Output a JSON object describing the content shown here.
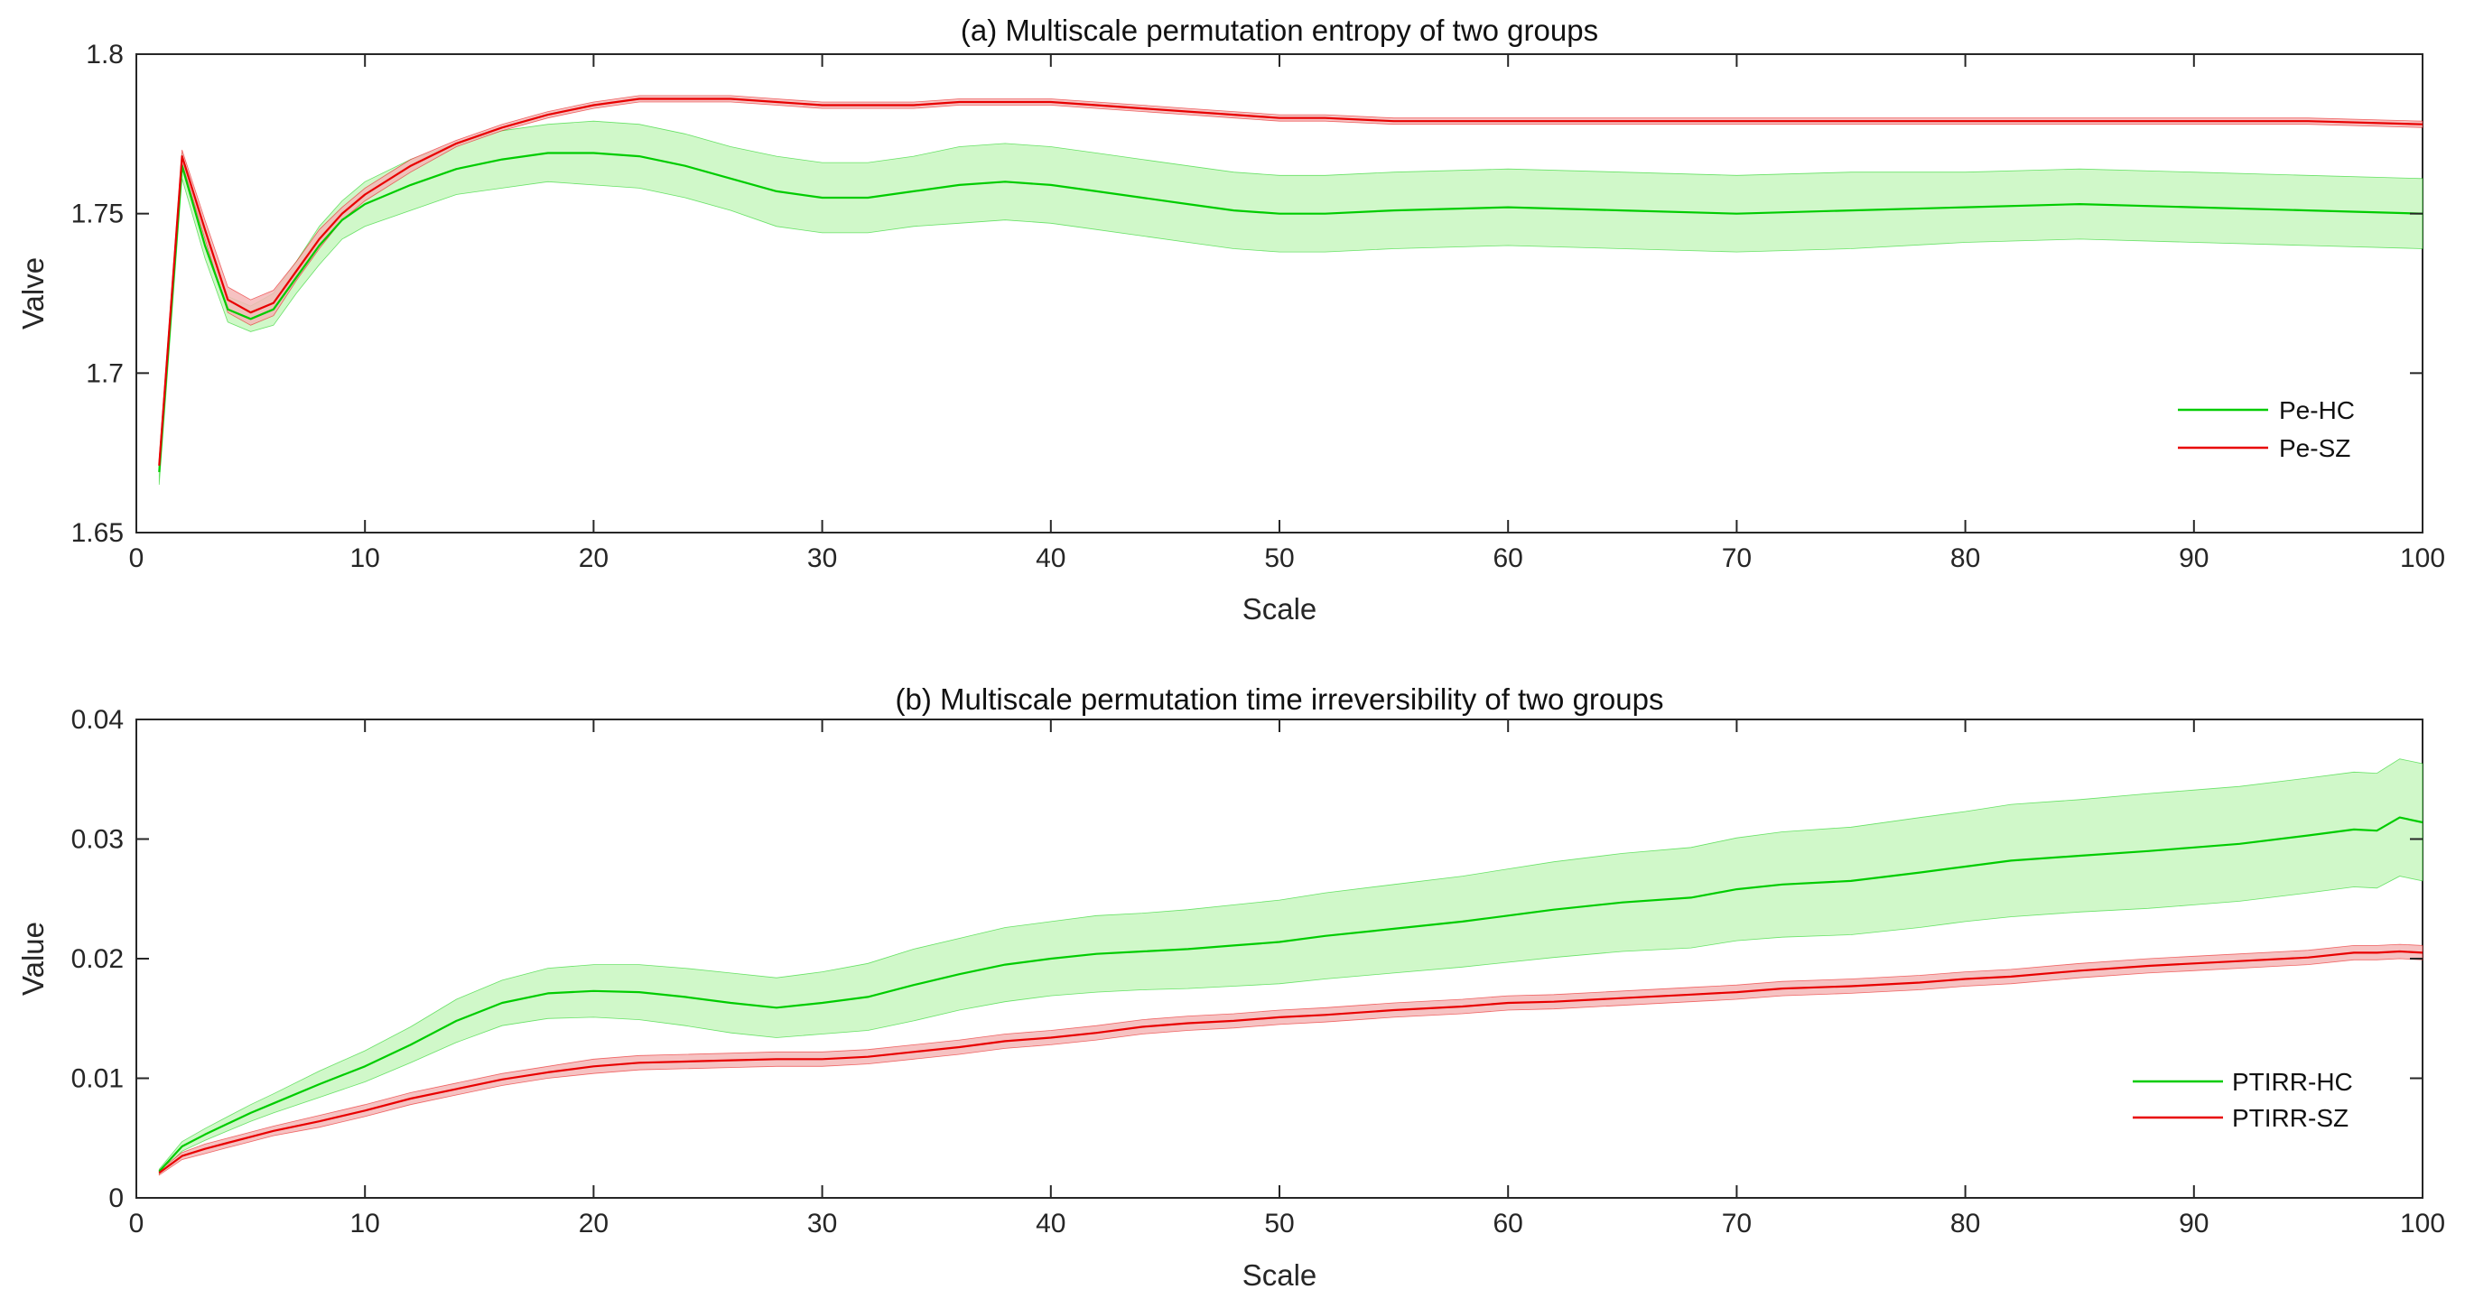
{
  "chart_data": [
    {
      "type": "line",
      "title": "(a) Multiscale permutation entropy of two groups",
      "xlabel": "Scale",
      "ylabel": "Valve",
      "xlim": [
        0,
        100
      ],
      "ylim": [
        1.65,
        1.8
      ],
      "x_ticks": [
        0,
        10,
        20,
        30,
        40,
        50,
        60,
        70,
        80,
        90,
        100
      ],
      "x_tick_labels": [
        "0",
        "10",
        "20",
        "30",
        "40",
        "50",
        "60",
        "70",
        "80",
        "90",
        "100"
      ],
      "y_ticks": [
        1.65,
        1.7,
        1.75,
        1.8
      ],
      "y_tick_labels": [
        "1.65",
        "1.7",
        "1.75",
        "1.8"
      ],
      "legend_position": "right",
      "series": [
        {
          "name": "Pe-HC",
          "color": "#00cc00",
          "band_color": "#c8f7c0",
          "x": [
            1,
            2,
            3,
            4,
            5,
            6,
            7,
            8,
            9,
            10,
            12,
            14,
            16,
            18,
            20,
            22,
            24,
            26,
            28,
            30,
            32,
            34,
            36,
            38,
            40,
            42,
            44,
            46,
            48,
            50,
            52,
            55,
            60,
            65,
            70,
            75,
            80,
            85,
            90,
            95,
            100
          ],
          "mean": [
            1.669,
            1.765,
            1.74,
            1.72,
            1.717,
            1.72,
            1.73,
            1.74,
            1.748,
            1.753,
            1.759,
            1.764,
            1.767,
            1.769,
            1.769,
            1.768,
            1.765,
            1.761,
            1.757,
            1.755,
            1.755,
            1.757,
            1.759,
            1.76,
            1.759,
            1.757,
            1.755,
            1.753,
            1.751,
            1.75,
            1.75,
            1.751,
            1.752,
            1.751,
            1.75,
            1.751,
            1.752,
            1.753,
            1.752,
            1.751,
            1.75
          ],
          "half_width": [
            0.004,
            0.004,
            0.004,
            0.004,
            0.004,
            0.005,
            0.005,
            0.006,
            0.006,
            0.007,
            0.008,
            0.008,
            0.009,
            0.009,
            0.01,
            0.01,
            0.01,
            0.01,
            0.011,
            0.011,
            0.011,
            0.011,
            0.012,
            0.012,
            0.012,
            0.012,
            0.012,
            0.012,
            0.012,
            0.012,
            0.012,
            0.012,
            0.012,
            0.012,
            0.012,
            0.012,
            0.011,
            0.011,
            0.011,
            0.011,
            0.011
          ]
        },
        {
          "name": "Pe-SZ",
          "color": "#e80000",
          "band_color": "#f4b7b7",
          "x": [
            1,
            2,
            3,
            4,
            5,
            6,
            7,
            8,
            9,
            10,
            12,
            14,
            16,
            18,
            20,
            22,
            24,
            26,
            28,
            30,
            32,
            34,
            36,
            38,
            40,
            42,
            44,
            46,
            48,
            50,
            52,
            55,
            60,
            65,
            70,
            75,
            80,
            85,
            90,
            95,
            100
          ],
          "mean": [
            1.671,
            1.768,
            1.745,
            1.723,
            1.719,
            1.722,
            1.732,
            1.742,
            1.75,
            1.756,
            1.765,
            1.772,
            1.777,
            1.781,
            1.784,
            1.786,
            1.786,
            1.786,
            1.785,
            1.784,
            1.784,
            1.784,
            1.785,
            1.785,
            1.785,
            1.784,
            1.783,
            1.782,
            1.781,
            1.78,
            1.78,
            1.779,
            1.779,
            1.779,
            1.779,
            1.779,
            1.779,
            1.779,
            1.779,
            1.779,
            1.778
          ],
          "half_width": [
            0.002,
            0.002,
            0.003,
            0.004,
            0.004,
            0.004,
            0.003,
            0.003,
            0.002,
            0.002,
            0.002,
            0.001,
            0.001,
            0.001,
            0.001,
            0.001,
            0.001,
            0.001,
            0.001,
            0.001,
            0.001,
            0.001,
            0.001,
            0.001,
            0.001,
            0.001,
            0.001,
            0.001,
            0.001,
            0.001,
            0.001,
            0.001,
            0.001,
            0.001,
            0.001,
            0.001,
            0.001,
            0.001,
            0.001,
            0.001,
            0.001
          ]
        }
      ]
    },
    {
      "type": "line",
      "title": "(b) Multiscale permutation time irreversibility of two groups",
      "xlabel": "Scale",
      "ylabel": "Value",
      "xlim": [
        0,
        100
      ],
      "ylim": [
        0,
        0.04
      ],
      "x_ticks": [
        0,
        10,
        20,
        30,
        40,
        50,
        60,
        70,
        80,
        90,
        100
      ],
      "x_tick_labels": [
        "0",
        "10",
        "20",
        "30",
        "40",
        "50",
        "60",
        "70",
        "80",
        "90",
        "100"
      ],
      "y_ticks": [
        0,
        0.01,
        0.02,
        0.03,
        0.04
      ],
      "y_tick_labels": [
        "0",
        "0.01",
        "0.02",
        "0.03",
        "0.04"
      ],
      "legend_position": "bottom-right",
      "series": [
        {
          "name": "PTIRR-HC",
          "color": "#00cc00",
          "band_color": "#c8f7c0",
          "x": [
            1,
            2,
            3,
            4,
            5,
            6,
            8,
            10,
            12,
            14,
            16,
            18,
            20,
            22,
            24,
            26,
            28,
            30,
            32,
            34,
            36,
            38,
            40,
            42,
            44,
            46,
            48,
            50,
            52,
            55,
            58,
            60,
            62,
            65,
            68,
            70,
            72,
            75,
            78,
            80,
            82,
            85,
            88,
            90,
            92,
            95,
            97,
            98,
            99,
            100
          ],
          "mean": [
            0.0022,
            0.0043,
            0.0053,
            0.0062,
            0.0071,
            0.0079,
            0.0095,
            0.011,
            0.0128,
            0.0148,
            0.0163,
            0.0171,
            0.0173,
            0.0172,
            0.0168,
            0.0163,
            0.0159,
            0.0163,
            0.0168,
            0.0178,
            0.0187,
            0.0195,
            0.02,
            0.0204,
            0.0206,
            0.0208,
            0.0211,
            0.0214,
            0.0219,
            0.0225,
            0.0231,
            0.0236,
            0.0241,
            0.0247,
            0.0251,
            0.0258,
            0.0262,
            0.0265,
            0.0272,
            0.0277,
            0.0282,
            0.0286,
            0.029,
            0.0293,
            0.0296,
            0.0303,
            0.0308,
            0.0307,
            0.0318,
            0.0314
          ],
          "half_width": [
            0.0002,
            0.0004,
            0.0005,
            0.0006,
            0.0007,
            0.0008,
            0.0011,
            0.0013,
            0.0015,
            0.0018,
            0.0019,
            0.0021,
            0.0022,
            0.0023,
            0.0024,
            0.0025,
            0.0025,
            0.0026,
            0.0028,
            0.003,
            0.003,
            0.0031,
            0.0031,
            0.0032,
            0.0032,
            0.0033,
            0.0034,
            0.0035,
            0.0036,
            0.0037,
            0.0038,
            0.0039,
            0.004,
            0.0041,
            0.0042,
            0.0043,
            0.0044,
            0.0045,
            0.0046,
            0.0046,
            0.0047,
            0.0047,
            0.0048,
            0.0048,
            0.0048,
            0.0048,
            0.0048,
            0.0048,
            0.0049,
            0.0049
          ]
        },
        {
          "name": "PTIRR-SZ",
          "color": "#e80000",
          "band_color": "#f4b7b7",
          "x": [
            1,
            2,
            3,
            4,
            5,
            6,
            8,
            10,
            12,
            14,
            16,
            18,
            20,
            22,
            24,
            26,
            28,
            30,
            32,
            34,
            36,
            38,
            40,
            42,
            44,
            46,
            48,
            50,
            52,
            55,
            58,
            60,
            62,
            65,
            68,
            70,
            72,
            75,
            78,
            80,
            82,
            85,
            88,
            90,
            92,
            95,
            97,
            98,
            99,
            100
          ],
          "mean": [
            0.0021,
            0.0035,
            0.0041,
            0.0046,
            0.0051,
            0.0056,
            0.0064,
            0.0073,
            0.0083,
            0.0091,
            0.0099,
            0.0105,
            0.011,
            0.0113,
            0.0114,
            0.0115,
            0.0116,
            0.0116,
            0.0118,
            0.0122,
            0.0126,
            0.0131,
            0.0134,
            0.0138,
            0.0143,
            0.0146,
            0.0148,
            0.0151,
            0.0153,
            0.0157,
            0.016,
            0.0163,
            0.0164,
            0.0167,
            0.017,
            0.0172,
            0.0175,
            0.0177,
            0.018,
            0.0183,
            0.0185,
            0.019,
            0.0194,
            0.0196,
            0.0198,
            0.0201,
            0.0205,
            0.0205,
            0.0206,
            0.0205
          ],
          "half_width": [
            0.0002,
            0.0003,
            0.0004,
            0.0004,
            0.0004,
            0.0004,
            0.0005,
            0.0005,
            0.0005,
            0.0005,
            0.0005,
            0.0005,
            0.0006,
            0.0006,
            0.0006,
            0.0006,
            0.0006,
            0.0006,
            0.0006,
            0.0006,
            0.0006,
            0.0006,
            0.0006,
            0.0006,
            0.0006,
            0.0006,
            0.0006,
            0.0006,
            0.0006,
            0.0006,
            0.0006,
            0.0006,
            0.0006,
            0.0006,
            0.0006,
            0.0006,
            0.0006,
            0.0006,
            0.0006,
            0.0006,
            0.0006,
            0.0006,
            0.0006,
            0.0006,
            0.0006,
            0.0006,
            0.0006,
            0.0006,
            0.0006,
            0.0006
          ]
        }
      ]
    }
  ]
}
